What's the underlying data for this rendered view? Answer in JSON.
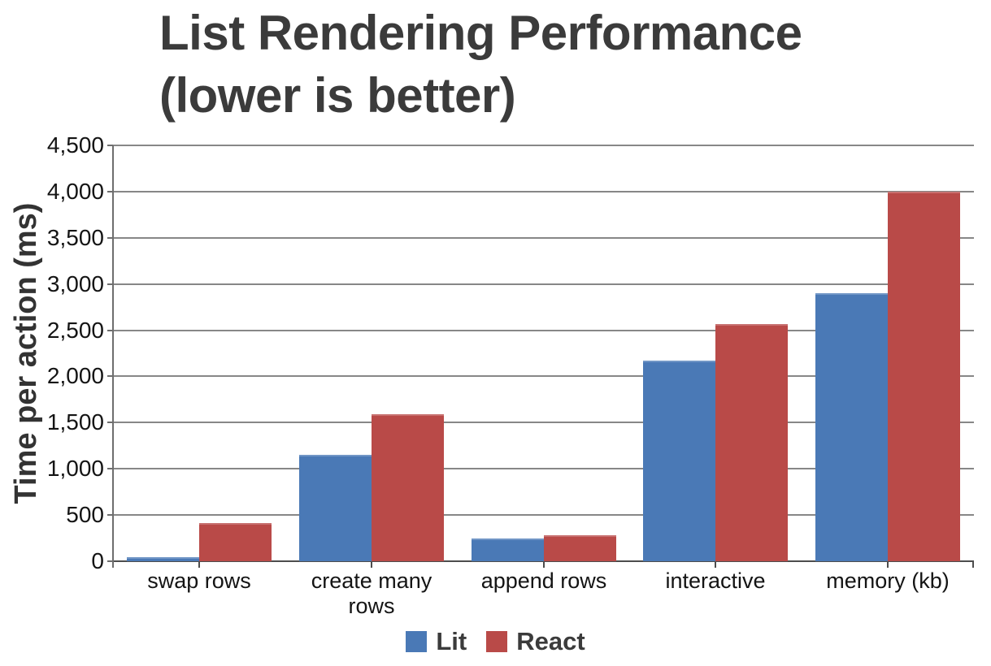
{
  "chart_data": {
    "type": "bar",
    "title": "List Rendering Performance (lower is better)",
    "title_lines": [
      "List Rendering Performance",
      "(lower is better)"
    ],
    "ylabel": "Time per action (ms)",
    "xlabel": "",
    "categories": [
      "swap rows",
      "create many rows",
      "append rows",
      "interactive",
      "memory (kb)"
    ],
    "series": [
      {
        "name": "Lit",
        "color": "#4a79b6",
        "values": [
          45,
          1150,
          245,
          2175,
          2900
        ]
      },
      {
        "name": "React",
        "color": "#b94a48",
        "values": [
          410,
          1590,
          280,
          2570,
          4000
        ]
      }
    ],
    "ylim": [
      0,
      4500
    ],
    "ytick_interval": 500,
    "ytick_labels": [
      "0",
      "500",
      "1,000",
      "1,500",
      "2,000",
      "2,500",
      "3,000",
      "3,500",
      "4,000",
      "4,500"
    ],
    "grid": true,
    "legend": {
      "position": "bottom",
      "entries": [
        "Lit",
        "React"
      ]
    }
  },
  "colors": {
    "lit_blue": "#4a79b6",
    "react_red": "#b94a48",
    "gridline": "#878787",
    "axis_dark": "#4d4d4d",
    "axis_mid": "#6e6e6e",
    "title_text": "#3b3b3b",
    "tick_text": "#141414",
    "background": "#ffffff"
  }
}
